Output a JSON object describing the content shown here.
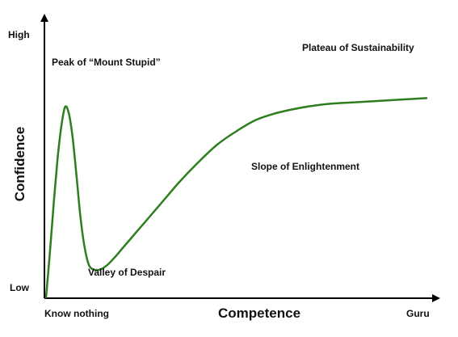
{
  "chart_data": {
    "type": "line",
    "title": "",
    "xlabel": "Competence",
    "ylabel": "Confidence",
    "xlim": [
      0,
      100
    ],
    "ylim": [
      0,
      100
    ],
    "x_ticks": [
      "Know nothing",
      "Guru"
    ],
    "y_ticks": [
      "Low",
      "High"
    ],
    "grid": false,
    "legend": "none",
    "series": [
      {
        "color": "#2e7d1f",
        "x": [
          0,
          1,
          2,
          3,
          4,
          5,
          6,
          7,
          8,
          9,
          10,
          11,
          12,
          14,
          16,
          18,
          20,
          23,
          26,
          30,
          35,
          40,
          45,
          50,
          55,
          60,
          65,
          70,
          75,
          80,
          85,
          90,
          95,
          100
        ],
        "y": [
          0,
          20,
          42,
          62,
          77,
          86,
          83,
          72,
          55,
          37,
          24,
          16,
          13,
          12.5,
          14.5,
          18,
          22,
          28,
          34,
          42,
          52,
          61,
          69,
          75,
          80,
          83,
          85,
          86.5,
          87.5,
          88,
          88.5,
          89,
          89.5,
          90
        ]
      }
    ],
    "annotations": [
      {
        "id": "peak",
        "text": "Peak of “Mount Stupid”"
      },
      {
        "id": "valley",
        "text": "Valley of Despair"
      },
      {
        "id": "slope",
        "text": "Slope of Enlightenment"
      },
      {
        "id": "plateau",
        "text": "Plateau of Sustainability"
      }
    ]
  }
}
